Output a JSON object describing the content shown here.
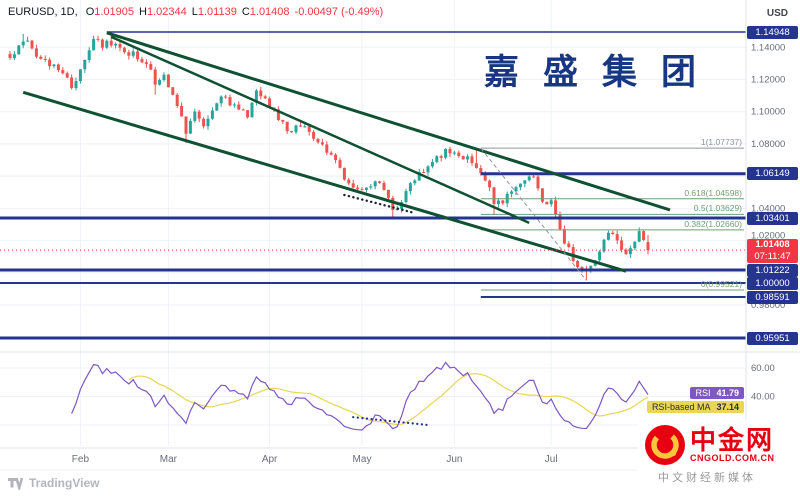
{
  "legend": {
    "symbol": "EURUSD, 1D,",
    "o_label": "O",
    "o_value": "1.01905",
    "h_label": "H",
    "h_value": "1.02344",
    "l_label": "L",
    "l_value": "1.01139",
    "c_label": "C",
    "c_value": "1.01408",
    "change": "-0.00497 (-0.49%)"
  },
  "watermark": "嘉盛集团",
  "axis": {
    "currency_label": "USD"
  },
  "last": {
    "price": "1.01408",
    "countdown": "07:11:47"
  },
  "rsi_badges": {
    "rsi": {
      "label": "RSI",
      "value": "41.79"
    },
    "ma": {
      "label": "RSI-based MA",
      "value": "37.14"
    }
  },
  "footer": {
    "tradingview": "TradingView"
  },
  "logo": {
    "name": "中金网",
    "domain": "CNGOLD.COM.CN",
    "tagline": "中文财经新媒体"
  },
  "chart_data": {
    "type": "candlestick",
    "symbol": "EURUSD",
    "timeframe": "1D",
    "price_axis_range": [
      0.952,
      1.169
    ],
    "bars_total": 146,
    "current_price": 1.01408,
    "last_candle": {
      "o": 1.01905,
      "h": 1.02344,
      "l": 1.01139,
      "c": 1.01408
    },
    "rsi_last": 41.79,
    "rsi_ma_last": 37.14,
    "months": [
      {
        "label": "Feb",
        "i": 16
      },
      {
        "label": "Mar",
        "i": 36
      },
      {
        "label": "Apr",
        "i": 59
      },
      {
        "label": "May",
        "i": 80
      },
      {
        "label": "Jun",
        "i": 101
      },
      {
        "label": "Jul",
        "i": 123
      }
    ],
    "price_ticks": [
      {
        "value": 1.14,
        "label": "1.14000"
      },
      {
        "value": 1.12,
        "label": "1.12000"
      },
      {
        "value": 1.1,
        "label": "1.10000"
      },
      {
        "value": 1.08,
        "label": "1.08000"
      },
      {
        "value": 1.06,
        "label": null
      },
      {
        "value": 1.04,
        "label": "1.04000"
      },
      {
        "value": 1.02,
        "label": "1.02000"
      },
      {
        "value": 1.0,
        "label": null
      },
      {
        "value": 0.98,
        "label": "0.98000"
      },
      {
        "value": 0.96,
        "label": null
      }
    ],
    "rsi_ticks": [
      {
        "value": 60,
        "label": "60.00"
      },
      {
        "value": 40,
        "label": "40.00"
      },
      {
        "value": 20,
        "label": "20.00"
      }
    ],
    "close_anchors": [
      [
        0,
        1.133
      ],
      [
        3,
        1.1452
      ],
      [
        5,
        1.139
      ],
      [
        7,
        1.1335
      ],
      [
        10,
        1.129
      ],
      [
        12,
        1.1235
      ],
      [
        14,
        1.115
      ],
      [
        16,
        1.127
      ],
      [
        19,
        1.1448
      ],
      [
        21,
        1.141
      ],
      [
        23,
        1.1428
      ],
      [
        26,
        1.1352
      ],
      [
        28,
        1.138
      ],
      [
        30,
        1.131
      ],
      [
        32,
        1.1265
      ],
      [
        33,
        1.119
      ],
      [
        35,
        1.1225
      ],
      [
        37,
        1.112
      ],
      [
        40,
        1.0865
      ],
      [
        42,
        1.0985
      ],
      [
        44,
        1.0915
      ],
      [
        48,
        1.1085
      ],
      [
        51,
        1.1035
      ],
      [
        54,
        1.0985
      ],
      [
        56,
        1.1125
      ],
      [
        58,
        1.107
      ],
      [
        59,
        1.1048
      ],
      [
        61,
        1.0955
      ],
      [
        63,
        1.0885
      ],
      [
        65,
        1.0905
      ],
      [
        67,
        1.0888
      ],
      [
        69,
        1.084
      ],
      [
        71,
        1.0795
      ],
      [
        73,
        1.072
      ],
      [
        75,
        1.064
      ],
      [
        77,
        1.056
      ],
      [
        79,
        1.0515
      ],
      [
        81,
        1.0525
      ],
      [
        83,
        1.0555
      ],
      [
        85,
        1.053
      ],
      [
        87,
        1.0385
      ],
      [
        88,
        1.0412
      ],
      [
        90,
        1.049
      ],
      [
        92,
        1.0585
      ],
      [
        94,
        1.0635
      ],
      [
        96,
        1.068
      ],
      [
        98,
        1.0735
      ],
      [
        99,
        1.0772
      ],
      [
        101,
        1.0738
      ],
      [
        103,
        1.0715
      ],
      [
        105,
        1.07
      ],
      [
        107,
        1.0618
      ],
      [
        109,
        1.052
      ],
      [
        110,
        1.0415
      ],
      [
        112,
        1.0445
      ],
      [
        113,
        1.0495
      ],
      [
        115,
        1.0545
      ],
      [
        117,
        1.0568
      ],
      [
        119,
        1.0585
      ],
      [
        121,
        1.0445
      ],
      [
        123,
        1.0428
      ],
      [
        125,
        1.0258
      ],
      [
        126,
        1.0188
      ],
      [
        128,
        1.009
      ],
      [
        129,
        1.0042
      ],
      [
        131,
        1.0005
      ],
      [
        132,
        1.0022
      ],
      [
        134,
        1.0135
      ],
      [
        135,
        1.0225
      ],
      [
        137,
        1.0245
      ],
      [
        138,
        1.0212
      ],
      [
        140,
        1.0118
      ],
      [
        142,
        1.0198
      ],
      [
        143,
        1.0262
      ],
      [
        144,
        1.019
      ],
      [
        145,
        1.01408
      ]
    ],
    "extremes": [
      {
        "i": 3,
        "high": 1.1483
      },
      {
        "i": 23,
        "high": 1.14948
      },
      {
        "i": 33,
        "low": 1.1106
      },
      {
        "i": 40,
        "low": 1.0806
      },
      {
        "i": 87,
        "low": 1.0349
      },
      {
        "i": 99,
        "high": 1.07737
      },
      {
        "i": 106,
        "high": 1.0774
      },
      {
        "i": 110,
        "low": 1.0359
      },
      {
        "i": 131,
        "low": 0.99521
      }
    ],
    "levels": [
      {
        "price": 1.14948,
        "label": "1.14948",
        "from_i": 22,
        "width": 1.5
      },
      {
        "price": 1.06149,
        "label": "1.06149",
        "from_i": 107,
        "width": 3
      },
      {
        "price": 1.03401,
        "label": "1.03401",
        "from_i": -1,
        "width": 3
      },
      {
        "price": 1.01222,
        "label": "1.01222",
        "from_i": -1,
        "width": 3
      },
      {
        "price": 1.0,
        "label": "1.00000",
        "from_i": -1,
        "width": 2
      },
      {
        "price": 0.98591,
        "label": "0.98591",
        "from_i": 107,
        "width": 2
      },
      {
        "price": 0.95951,
        "label": "0.95951",
        "from_i": -1,
        "width": 3
      }
    ],
    "fib": {
      "from_i": 107,
      "lines": [
        {
          "label": "1(1.07737)",
          "price": 1.07737,
          "color": "gray"
        },
        {
          "label": "0.618(1.04598)",
          "price": 1.04598,
          "color": "fib"
        },
        {
          "label": "0.5(1.03629)",
          "price": 1.03629,
          "color": "fib"
        },
        {
          "label": "0.382(1.02660)",
          "price": 1.0266,
          "color": "fib"
        },
        {
          "label": "0(0.99521)",
          "price": 0.99521,
          "color": "fib"
        }
      ]
    },
    "trendlines": [
      {
        "name": "upper-channel",
        "i1": 22,
        "p1": 1.149,
        "i2": 150,
        "p2": 1.039,
        "color": "channel",
        "width": 3
      },
      {
        "name": "lower-channel",
        "i1": 3,
        "p1": 1.112,
        "i2": 140,
        "p2": 1.001,
        "color": "channel",
        "width": 3
      },
      {
        "name": "inner-trendline",
        "i1": 23,
        "p1": 1.1465,
        "i2": 118,
        "p2": 1.031,
        "color": "channel",
        "width": 2.5
      },
      {
        "name": "fib-diagonal",
        "i1": 107,
        "p1": 1.07737,
        "i2": 131,
        "p2": 0.99521,
        "color": "gray",
        "width": 1,
        "dash": "4 3"
      },
      {
        "name": "hand-dotted-trendline",
        "i1": 76,
        "p1": 1.0483,
        "i2": 92,
        "p2": 1.0371,
        "color": "ink",
        "width": 2.4,
        "dash": "0.1 4.5",
        "cap": "round"
      }
    ],
    "rsi_trendline": {
      "i1": 78,
      "v1": 25.5,
      "i2": 95,
      "v2": 20,
      "width": 2.2,
      "dash": "0.1 4.5"
    },
    "colors": {
      "up": "#26a69a",
      "down": "#ef5350",
      "navy": "#25348f",
      "channel": "#0f5132",
      "fib": "#6f9e74",
      "gray": "#8f959e",
      "grid": "#eef2f8",
      "axisText": "#696d78",
      "red": "#f23645",
      "purple": "#7e57c2",
      "yellow": "#e8d655",
      "ink": "#1c2333"
    }
  }
}
